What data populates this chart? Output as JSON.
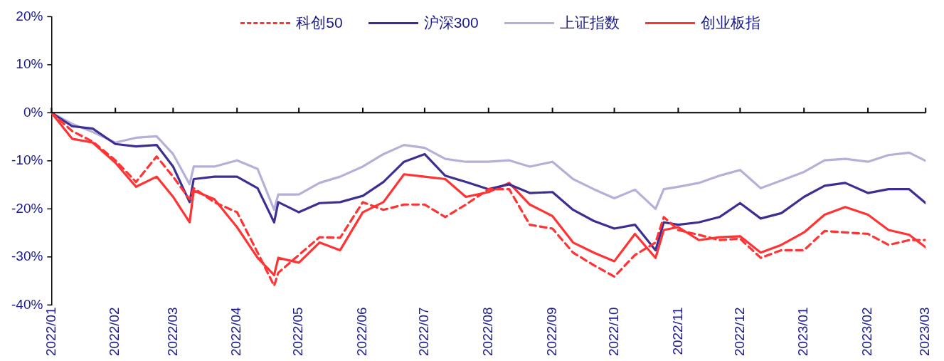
{
  "chart_data": {
    "type": "line",
    "x": [
      "2022-01-01",
      "2022-01-11",
      "2022-01-21",
      "2022-02-01",
      "2022-02-11",
      "2022-02-21",
      "2022-03-01",
      "2022-03-09",
      "2022-03-11",
      "2022-03-21",
      "2022-04-01",
      "2022-04-11",
      "2022-04-19",
      "2022-04-21",
      "2022-05-01",
      "2022-05-11",
      "2022-05-21",
      "2022-06-01",
      "2022-06-11",
      "2022-06-21",
      "2022-07-01",
      "2022-07-11",
      "2022-07-21",
      "2022-08-01",
      "2022-08-11",
      "2022-08-21",
      "2022-09-01",
      "2022-09-11",
      "2022-09-21",
      "2022-10-01",
      "2022-10-11",
      "2022-10-21",
      "2022-10-25",
      "2022-11-01",
      "2022-11-11",
      "2022-11-21",
      "2022-12-01",
      "2022-12-11",
      "2022-12-21",
      "2023-01-01",
      "2023-01-11",
      "2023-01-21",
      "2023-02-01",
      "2023-02-11",
      "2023-02-21",
      "2023-03-01"
    ],
    "series": [
      {
        "name": "科创50",
        "color": "#ff3333",
        "line_style": "dashed",
        "values": [
          0,
          -3.8,
          -6,
          -9.9,
          -14.4,
          -9.1,
          -13.3,
          -18,
          -15.7,
          -18.6,
          -20.7,
          -29.1,
          -36,
          -33.3,
          -29.6,
          -25.9,
          -26,
          -18.6,
          -20.2,
          -19.1,
          -19.1,
          -21.7,
          -19.1,
          -15.9,
          -15.9,
          -23.3,
          -24.1,
          -29.1,
          -31.7,
          -34.1,
          -29.6,
          -27,
          -21.7,
          -24.4,
          -25.4,
          -26.5,
          -26.2,
          -30.2,
          -28.6,
          -28.6,
          -24.6,
          -24.9,
          -25.2,
          -27.5,
          -26.5,
          -26.5
        ]
      },
      {
        "name": "沪深300",
        "color": "#3b3092",
        "line_style": "solid",
        "values": [
          0,
          -2.8,
          -3.3,
          -6.5,
          -7,
          -6.7,
          -11.2,
          -18.6,
          -13.8,
          -13.3,
          -13.3,
          -15.7,
          -22.8,
          -18.6,
          -20.7,
          -18.8,
          -18.6,
          -17.3,
          -14.4,
          -10.2,
          -8.6,
          -13.1,
          -14.4,
          -15.9,
          -14.9,
          -16.7,
          -16.5,
          -20.2,
          -22.5,
          -24.1,
          -23.3,
          -28.6,
          -22.8,
          -23.3,
          -22.8,
          -21.7,
          -18.8,
          -22,
          -20.9,
          -17.5,
          -15.2,
          -14.6,
          -16.7,
          -15.9,
          -15.9,
          -18.8
        ]
      },
      {
        "name": "上证指数",
        "color": "#b4b0d8",
        "line_style": "solid",
        "values": [
          0,
          -2.3,
          -4,
          -6.2,
          -5.2,
          -4.9,
          -8.6,
          -14.9,
          -11.2,
          -11.2,
          -9.9,
          -11.7,
          -20.2,
          -17,
          -17,
          -14.6,
          -13.3,
          -11.2,
          -8.6,
          -6.7,
          -7.3,
          -9.6,
          -10.2,
          -10.2,
          -9.9,
          -11.2,
          -10.2,
          -13.8,
          -15.9,
          -17.8,
          -16,
          -20,
          -15.9,
          -15.4,
          -14.6,
          -13.1,
          -11.9,
          -15.7,
          -14.1,
          -12.3,
          -9.9,
          -9.6,
          -10.2,
          -8.8,
          -8.3,
          -10
        ]
      },
      {
        "name": "创业板指",
        "color": "#ff3333",
        "line_style": "solid",
        "values": [
          0,
          -5.4,
          -6.2,
          -10.4,
          -15.4,
          -13.3,
          -17.5,
          -22.8,
          -16.2,
          -18,
          -23.8,
          -30.2,
          -33.8,
          -30.2,
          -31.2,
          -27,
          -28.6,
          -20.7,
          -18.6,
          -12.8,
          -13.3,
          -13.8,
          -17.5,
          -16.5,
          -14.6,
          -19.1,
          -21.5,
          -27,
          -29.1,
          -30.9,
          -25.2,
          -30.2,
          -24.4,
          -23.8,
          -26.5,
          -25.9,
          -25.7,
          -29.1,
          -27.5,
          -24.9,
          -21.2,
          -19.6,
          -21.2,
          -24.4,
          -25.4,
          -28
        ]
      }
    ],
    "xlim": [
      "2022-01",
      "2023-03"
    ],
    "xticks": [
      {
        "value": "2022-01",
        "label": "2022/01"
      },
      {
        "value": "2022-02",
        "label": "2022/02"
      },
      {
        "value": "2022-03",
        "label": "2022/03"
      },
      {
        "value": "2022-04",
        "label": "2022/04"
      },
      {
        "value": "2022-05",
        "label": "2022/05"
      },
      {
        "value": "2022-06",
        "label": "2022/06"
      },
      {
        "value": "2022-07",
        "label": "2022/07"
      },
      {
        "value": "2022-08",
        "label": "2022/08"
      },
      {
        "value": "2022-09",
        "label": "2022/09"
      },
      {
        "value": "2022-10",
        "label": "2022/10"
      },
      {
        "value": "2022-11",
        "label": "2022/11"
      },
      {
        "value": "2022-12",
        "label": "2022/12"
      },
      {
        "value": "2023-01",
        "label": "2023/01"
      },
      {
        "value": "2023-02",
        "label": "2023/02"
      },
      {
        "value": "2023-03",
        "label": "2023/03"
      }
    ],
    "ylim": [
      -40,
      20
    ],
    "yticks": [
      {
        "value": -40,
        "label": "-40%"
      },
      {
        "value": -30,
        "label": "-30%"
      },
      {
        "value": -20,
        "label": "-20%"
      },
      {
        "value": -10,
        "label": "-10%"
      },
      {
        "value": 0,
        "label": "0%"
      },
      {
        "value": 10,
        "label": "10%"
      },
      {
        "value": 20,
        "label": "20%"
      }
    ],
    "ref_lines": [
      {
        "axis": "y",
        "value": 0,
        "color": "#000000",
        "line_style": "solid"
      }
    ],
    "grid": false,
    "legend": "top",
    "marker": "none"
  }
}
